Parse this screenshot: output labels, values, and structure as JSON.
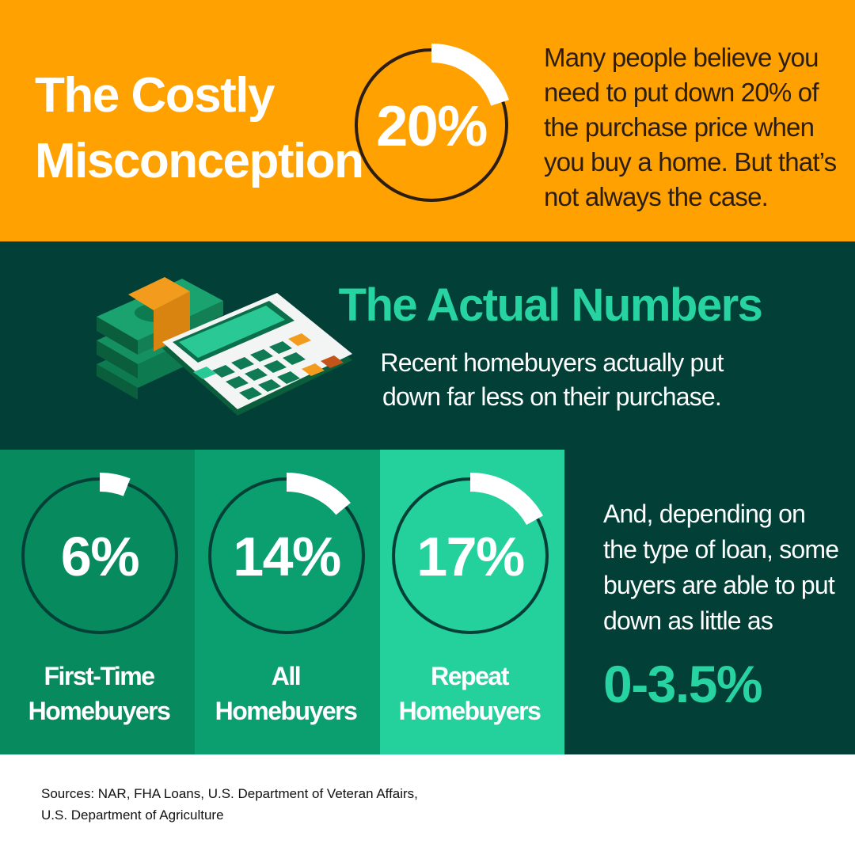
{
  "header": {
    "title": [
      "The Costly",
      "Misconception"
    ],
    "stat": {
      "value": 20,
      "label": "20%"
    },
    "text": [
      "Many people believe you",
      "need to put down 20% of",
      "the purchase price when",
      "you buy a home. But that’s",
      "not always the case."
    ]
  },
  "actual": {
    "title": "The Actual Numbers",
    "text": [
      "Recent homebuyers actually put",
      "down far less on their purchase."
    ]
  },
  "groups": [
    {
      "value": 6,
      "label": "6%",
      "name": [
        "First-Time",
        "Homebuyers"
      ]
    },
    {
      "value": 14,
      "label": "14%",
      "name": [
        "All",
        "Homebuyers"
      ]
    },
    {
      "value": 17,
      "label": "17%",
      "name": [
        "Repeat",
        "Homebuyers"
      ]
    }
  ],
  "note": {
    "text": [
      "And, depending on",
      "the type of loan, some",
      "buyers are able to put",
      "down as little as"
    ],
    "highlight": "0-3.5%"
  },
  "sources": [
    "Sources: NAR, FHA Loans, U.S. Department of Veteran Affairs,",
    "U.S. Department of Agriculture"
  ]
}
